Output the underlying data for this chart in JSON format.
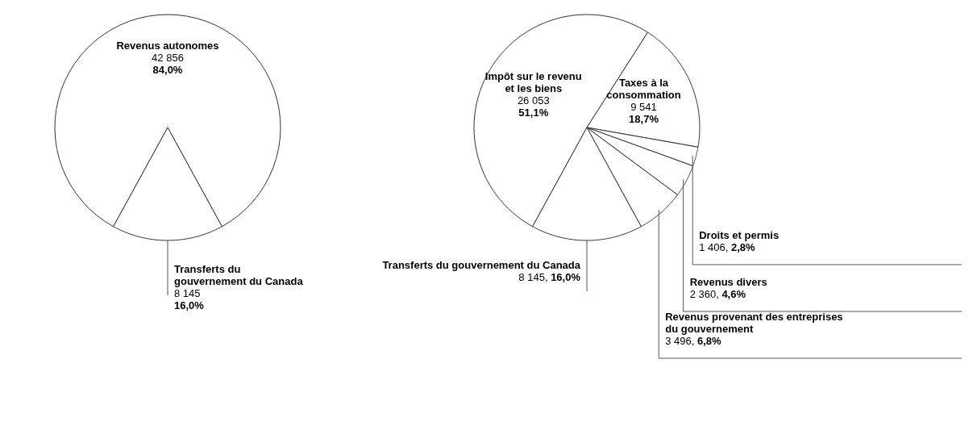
{
  "chart_data": [
    {
      "type": "pie",
      "categories": [
        "Revenus autonomes",
        "Transferts du\ngouvernement du Canada"
      ],
      "values": [
        42856,
        8145
      ],
      "colors": [
        "#ffffff",
        "#ffffff"
      ],
      "value_labels": [
        "42 856\n84,0%",
        "8 145\n16,0%"
      ]
    },
    {
      "type": "pie",
      "categories": [
        "Impôt sur le revenu\net les biens",
        "Taxes à la\nconsommation",
        "Droits et permis",
        "Revenus divers",
        "Revenus provenant des entreprises\ndu gouvernement",
        "Transferts du gouvernement du Canada"
      ],
      "values": [
        26053,
        9541,
        1406,
        2360,
        3496,
        8145
      ],
      "colors": [
        "#ffffff",
        "#ffffff",
        "#ffffff",
        "#ffffff",
        "#ffffff",
        "#ffffff"
      ],
      "value_labels": [
        "26 053\n51,1%",
        "9 541\n18,7%",
        "1 406, 2,8%",
        "2 360, 4,6%",
        "3 496, 6,8%",
        "8 145, 16,0%"
      ]
    }
  ]
}
